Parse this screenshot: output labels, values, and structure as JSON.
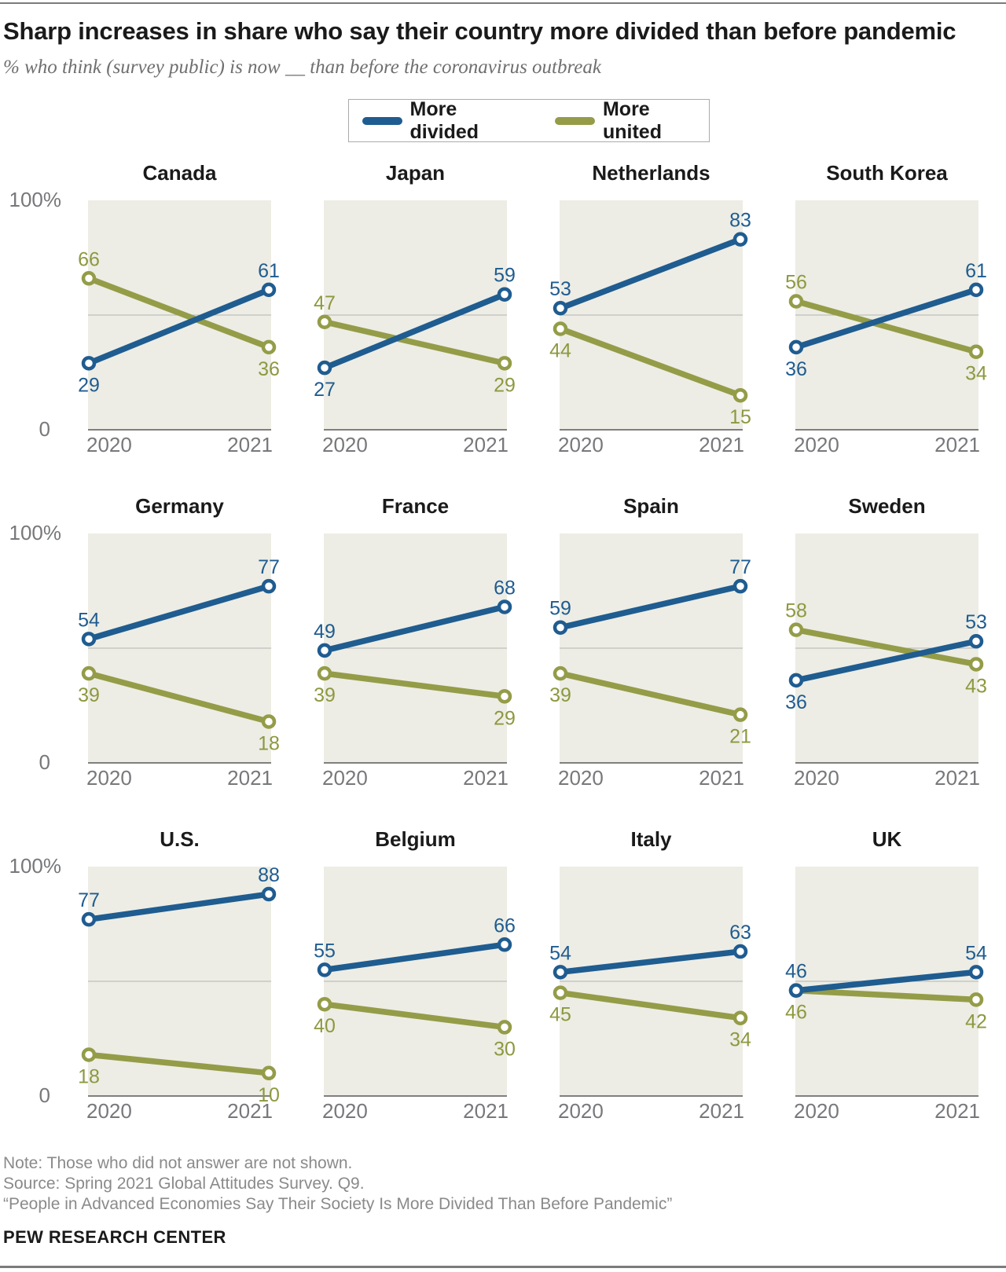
{
  "header": {
    "title": "Sharp increases in share who say their country more divided than before pandemic",
    "subtitle": "% who think (survey public) is now __ than before the coronavirus outbreak"
  },
  "legend": [
    {
      "label": "More divided",
      "color": "#1f5c90"
    },
    {
      "label": "More united",
      "color": "#949c48"
    }
  ],
  "axis": {
    "y_top_label": "100%",
    "y_bottom_label": "0",
    "x_labels": [
      "2020",
      "2021"
    ]
  },
  "chart_data": {
    "type": "line",
    "x": [
      2020,
      2021
    ],
    "ylim": [
      0,
      100
    ],
    "gridline": 50,
    "grid_on": true,
    "plot_bg": "#ededE5",
    "grid_color": "#b3b3b3",
    "axis_color": "#58585a",
    "series_names": {
      "divided": "More divided",
      "united": "More united"
    },
    "colors": {
      "divided": "#1f5c90",
      "united": "#949c48"
    },
    "label_colors": {
      "divided": "#1f5c90",
      "united": "#8e983f"
    },
    "panels": [
      {
        "country": "Canada",
        "divided": [
          29,
          61
        ],
        "united": [
          66,
          36
        ]
      },
      {
        "country": "Japan",
        "divided": [
          27,
          59
        ],
        "united": [
          47,
          29
        ]
      },
      {
        "country": "Netherlands",
        "divided": [
          53,
          83
        ],
        "united": [
          44,
          15
        ]
      },
      {
        "country": "South Korea",
        "divided": [
          36,
          61
        ],
        "united": [
          56,
          34
        ]
      },
      {
        "country": "Germany",
        "divided": [
          54,
          77
        ],
        "united": [
          39,
          18
        ]
      },
      {
        "country": "France",
        "divided": [
          49,
          68
        ],
        "united": [
          39,
          29
        ]
      },
      {
        "country": "Spain",
        "divided": [
          59,
          77
        ],
        "united": [
          39,
          21
        ]
      },
      {
        "country": "Sweden",
        "divided": [
          36,
          53
        ],
        "united": [
          58,
          43
        ]
      },
      {
        "country": "U.S.",
        "divided": [
          77,
          88
        ],
        "united": [
          18,
          10
        ]
      },
      {
        "country": "Belgium",
        "divided": [
          55,
          66
        ],
        "united": [
          40,
          30
        ]
      },
      {
        "country": "Italy",
        "divided": [
          54,
          63
        ],
        "united": [
          45,
          34
        ]
      },
      {
        "country": "UK",
        "divided": [
          46,
          54
        ],
        "united": [
          46,
          42
        ]
      }
    ]
  },
  "footer": {
    "note": "Note: Those who did not answer are not shown.",
    "source": "Source: Spring 2021 Global Attitudes Survey. Q9.",
    "quote": "“People in Advanced Economies Say Their Society Is More Divided Than Before Pandemic”",
    "brand": "PEW RESEARCH CENTER"
  }
}
